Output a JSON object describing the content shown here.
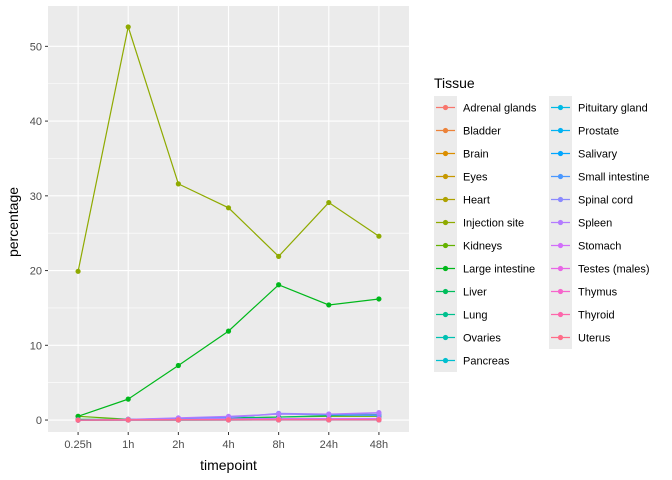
{
  "chart_data": {
    "type": "line",
    "xlabel": "timepoint",
    "ylabel": "percentage",
    "categories": [
      "0.25h",
      "1h",
      "2h",
      "4h",
      "8h",
      "24h",
      "48h"
    ],
    "y_ticks": [
      0,
      10,
      20,
      30,
      40,
      50
    ],
    "ylim": [
      -1.6,
      55.4
    ],
    "grid": true,
    "legend_title": "Tissue",
    "legend_position": "right",
    "series": [
      {
        "name": "Adrenal glands",
        "color": "#F8766D",
        "values": [
          0,
          0.02,
          0.02,
          0.03,
          0.03,
          0.03,
          0.03
        ]
      },
      {
        "name": "Bladder",
        "color": "#EC8239",
        "values": [
          0,
          0.03,
          0.04,
          0.05,
          0.05,
          0.04,
          0.04
        ]
      },
      {
        "name": "Brain",
        "color": "#DB8E00",
        "values": [
          0,
          0.01,
          0.01,
          0.02,
          0.02,
          0.02,
          0.02
        ]
      },
      {
        "name": "Eyes",
        "color": "#C79800",
        "values": [
          0,
          0.02,
          0.02,
          0.03,
          0.03,
          0.03,
          0.03
        ]
      },
      {
        "name": "Heart",
        "color": "#AEA200",
        "values": [
          0,
          0.05,
          0.08,
          0.1,
          0.15,
          0.2,
          0.2
        ]
      },
      {
        "name": "Injection site",
        "color": "#8FAA00",
        "values": [
          19.9,
          52.6,
          31.6,
          28.4,
          21.9,
          29.1,
          24.6
        ]
      },
      {
        "name": "Kidneys",
        "color": "#64B200",
        "values": [
          0.5,
          0.1,
          0.15,
          0.2,
          0.4,
          0.5,
          0.5
        ]
      },
      {
        "name": "Large intestine",
        "color": "#00B81B",
        "values": [
          0.5,
          2.8,
          7.3,
          11.9,
          18.1,
          15.4,
          16.2
        ]
      },
      {
        "name": "Liver",
        "color": "#00BD5C",
        "values": [
          0.1,
          0.1,
          0.2,
          0.3,
          0.4,
          0.6,
          0.7
        ]
      },
      {
        "name": "Lung",
        "color": "#00C08E",
        "values": [
          0.05,
          0.05,
          0.1,
          0.15,
          0.2,
          0.2,
          0.2
        ]
      },
      {
        "name": "Ovaries",
        "color": "#00C1B2",
        "values": [
          0,
          0.01,
          0.01,
          0.01,
          0.02,
          0.02,
          0.02
        ]
      },
      {
        "name": "Pancreas",
        "color": "#00BFCF",
        "values": [
          0,
          0.02,
          0.03,
          0.04,
          0.05,
          0.05,
          0.05
        ]
      },
      {
        "name": "Pituitary gland",
        "color": "#00BAE5",
        "values": [
          0,
          0.01,
          0.01,
          0.01,
          0.01,
          0.01,
          0.01
        ]
      },
      {
        "name": "Prostate",
        "color": "#00B2F3",
        "values": [
          0,
          0.01,
          0.01,
          0.02,
          0.02,
          0.02,
          0.02
        ]
      },
      {
        "name": "Salivary",
        "color": "#00A6FF",
        "values": [
          0,
          0.02,
          0.03,
          0.05,
          0.05,
          0.05,
          0.05
        ]
      },
      {
        "name": "Small intestine",
        "color": "#4A98FF",
        "values": [
          0,
          0.1,
          0.2,
          0.4,
          0.8,
          0.7,
          0.6
        ]
      },
      {
        "name": "Spinal cord",
        "color": "#8A89FF",
        "values": [
          0,
          0.05,
          0.1,
          0.3,
          0.9,
          0.8,
          0.8
        ]
      },
      {
        "name": "Spleen",
        "color": "#B37BFF",
        "values": [
          0,
          0.1,
          0.3,
          0.5,
          0.8,
          0.8,
          1.0
        ]
      },
      {
        "name": "Stomach",
        "color": "#D26EFA",
        "values": [
          0,
          0.05,
          0.1,
          0.15,
          0.2,
          0.2,
          0.2
        ]
      },
      {
        "name": "Testes (males)",
        "color": "#E866E6",
        "values": [
          0,
          0.01,
          0.02,
          0.02,
          0.03,
          0.03,
          0.03
        ]
      },
      {
        "name": "Thymus",
        "color": "#F664CB",
        "values": [
          0,
          0.01,
          0.02,
          0.02,
          0.03,
          0.03,
          0.03
        ]
      },
      {
        "name": "Thyroid",
        "color": "#FD66AB",
        "values": [
          0,
          0.01,
          0.01,
          0.01,
          0.02,
          0.02,
          0.02
        ]
      },
      {
        "name": "Uterus",
        "color": "#FF6C88",
        "values": [
          0,
          0.02,
          0.02,
          0.03,
          0.03,
          0.03,
          0.03
        ]
      }
    ]
  }
}
